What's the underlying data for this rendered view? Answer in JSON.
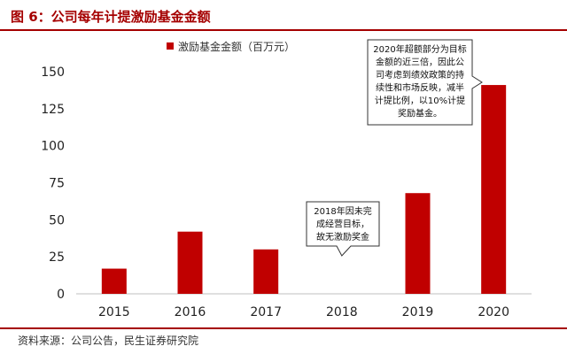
{
  "figure": {
    "title": "图 6：公司每年计提激励基金金额",
    "source": "资料来源：公司公告，民生证券研究院"
  },
  "colors": {
    "accent": "#a50000",
    "bar": "#c00000"
  },
  "chart_data": {
    "type": "bar",
    "categories": [
      "2015",
      "2016",
      "2017",
      "2018",
      "2019",
      "2020"
    ],
    "series": [
      {
        "name": "激励基金金额（百万元）",
        "values": [
          17,
          42,
          30,
          0,
          68,
          141
        ]
      }
    ],
    "ylim": [
      0,
      150
    ],
    "yticks": [
      "0",
      "25",
      "50",
      "75",
      "100",
      "125",
      "150"
    ],
    "grid": false,
    "legend": "top-left",
    "annotations": [
      {
        "text_lines": [
          "2020年超额部分为目标",
          "金额的近三倍，因此公",
          "司考虑到绩效政策的持",
          "续性和市场反映，减半",
          "计提比例，以10%计提",
          "奖励基金。"
        ],
        "target": "2020"
      },
      {
        "text_lines": [
          "2018年因未完",
          "成经营目标，",
          "故无激励奖金"
        ],
        "target": "2018"
      }
    ]
  }
}
